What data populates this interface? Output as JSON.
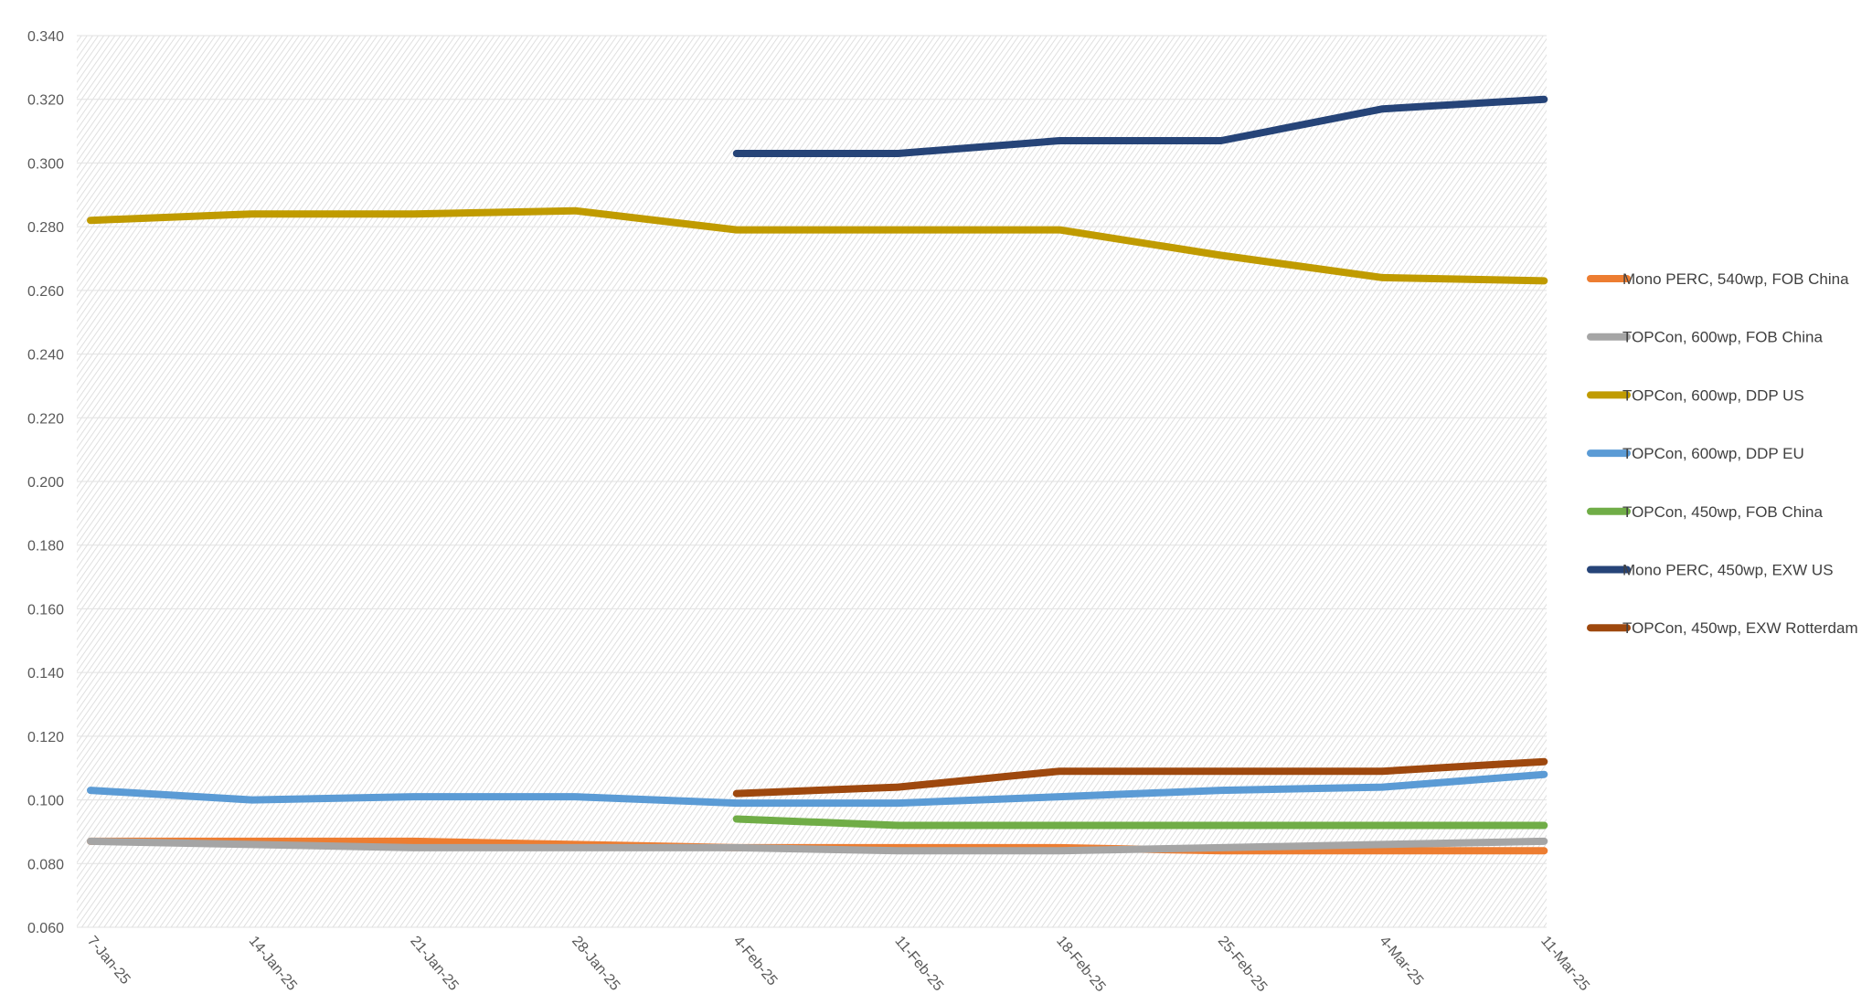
{
  "chart_data": {
    "type": "line",
    "categories": [
      "7-Jan-25",
      "14-Jan-25",
      "21-Jan-25",
      "28-Jan-25",
      "4-Feb-25",
      "11-Feb-25",
      "18-Feb-25",
      "25-Feb-25",
      "4-Mar-25",
      "11-Mar-25"
    ],
    "ylim": [
      0.06,
      0.34
    ],
    "yticks": [
      "0.060",
      "0.080",
      "0.100",
      "0.120",
      "0.140",
      "0.160",
      "0.180",
      "0.200",
      "0.220",
      "0.240",
      "0.260",
      "0.280",
      "0.300",
      "0.320",
      "0.340"
    ],
    "grid": true,
    "legend_position": "right",
    "series": [
      {
        "name": "Mono PERC, 540wp, FOB China",
        "color": "#ED7D31",
        "values": [
          0.087,
          0.087,
          0.087,
          0.086,
          0.085,
          0.085,
          0.085,
          0.084,
          0.084,
          0.084
        ]
      },
      {
        "name": "TOPCon, 600wp, FOB China",
        "color": "#A5A5A5",
        "values": [
          0.087,
          0.086,
          0.085,
          0.085,
          0.085,
          0.084,
          0.084,
          0.085,
          0.086,
          0.087
        ]
      },
      {
        "name": "TOPCon, 600wp, DDP US",
        "color": "#C09B00",
        "values": [
          0.282,
          0.284,
          0.284,
          0.285,
          0.279,
          0.279,
          0.279,
          0.271,
          0.264,
          0.263
        ]
      },
      {
        "name": "TOPCon, 600wp, DDP EU",
        "color": "#5B9BD5",
        "values": [
          0.103,
          0.1,
          0.101,
          0.101,
          0.099,
          0.099,
          0.101,
          0.103,
          0.104,
          0.108
        ]
      },
      {
        "name": "TOPCon, 450wp, FOB China",
        "color": "#70AD47",
        "values": [
          null,
          null,
          null,
          null,
          0.094,
          0.092,
          0.092,
          0.092,
          0.092,
          0.092
        ]
      },
      {
        "name": "Mono PERC, 450wp, EXW US",
        "color": "#264478",
        "values": [
          null,
          null,
          null,
          null,
          0.303,
          0.303,
          0.307,
          0.307,
          0.317,
          0.32
        ]
      },
      {
        "name": "TOPCon, 450wp, EXW Rotterdam",
        "color": "#9E480E",
        "values": [
          null,
          null,
          null,
          null,
          0.102,
          0.104,
          0.109,
          0.109,
          0.109,
          0.112
        ]
      }
    ]
  }
}
